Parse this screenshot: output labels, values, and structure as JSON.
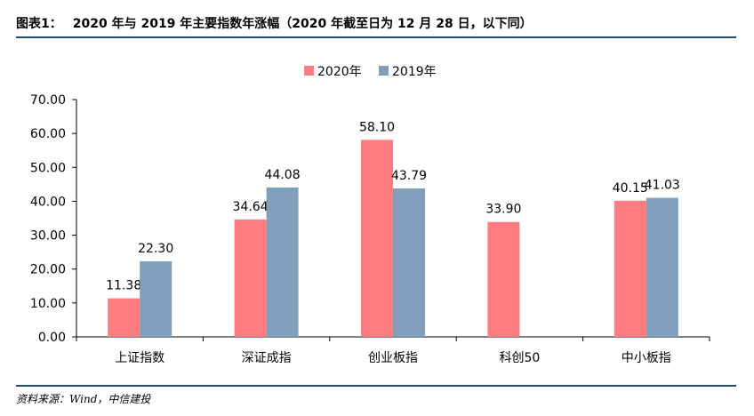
{
  "header": {
    "label": "图表1：",
    "title": "2020 年与 2019 年主要指数年涨幅（2020 年截至日为 12 月 28 日，以下同）"
  },
  "footer": {
    "source": "资料来源：Wind，中信建投"
  },
  "colors": {
    "series_2020": "#ff7c80",
    "series_2019": "#7f9fba",
    "rule": "#1f4e79",
    "axis": "#000000"
  },
  "chart_data": {
    "type": "bar",
    "title": "",
    "xlabel": "",
    "ylabel": "",
    "categories": [
      "上证指数",
      "深证成指",
      "创业板指",
      "科创50",
      "中小板指"
    ],
    "series": [
      {
        "name": "2020年",
        "values": [
          11.38,
          34.64,
          58.1,
          33.9,
          40.15
        ]
      },
      {
        "name": "2019年",
        "values": [
          22.3,
          44.08,
          43.79,
          null,
          41.03
        ]
      }
    ],
    "value_labels": [
      [
        "11.38",
        "34.64",
        "58.10",
        "33.90",
        "40.15"
      ],
      [
        "22.30",
        "44.08",
        "43.79",
        null,
        "41.03"
      ]
    ],
    "yticks": [
      "0.00",
      "10.00",
      "20.00",
      "30.00",
      "40.00",
      "50.00",
      "60.00",
      "70.00"
    ],
    "ylim": [
      0,
      70
    ],
    "grid": false,
    "legend": "top-center"
  }
}
